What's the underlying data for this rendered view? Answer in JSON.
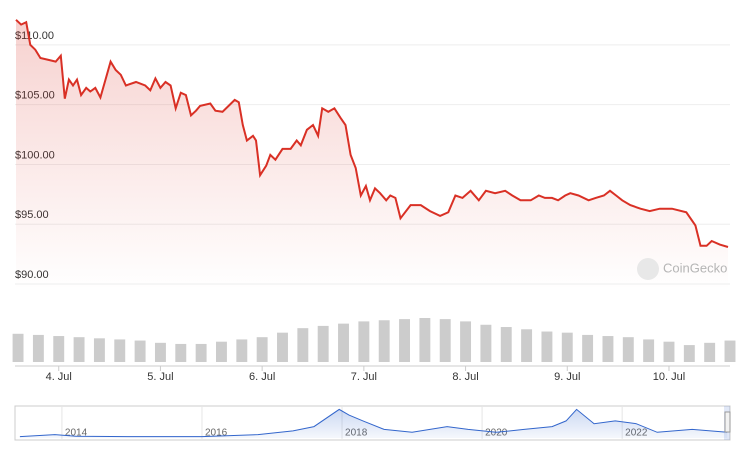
{
  "chart_data": [
    {
      "type": "line",
      "watermark": "CoinGecko",
      "x": [
        3.58,
        3.63,
        3.68,
        3.72,
        3.77,
        3.82,
        3.92,
        3.97,
        4.02,
        4.06,
        4.1,
        4.14,
        4.18,
        4.22,
        4.27,
        4.31,
        4.36,
        4.41,
        4.46,
        4.51,
        4.56,
        4.61,
        4.66,
        4.76,
        4.85,
        4.9,
        4.95,
        5.0,
        5.05,
        5.1,
        5.15,
        5.2,
        5.25,
        5.3,
        5.35,
        5.39,
        5.49,
        5.54,
        5.61,
        5.67,
        5.73,
        5.77,
        5.81,
        5.85,
        5.91,
        5.94,
        5.98,
        6.04,
        6.08,
        6.13,
        6.2,
        6.28,
        6.34,
        6.38,
        6.44,
        6.5,
        6.55,
        6.59,
        6.65,
        6.71,
        6.77,
        6.82,
        6.87,
        6.92,
        6.97,
        7.02,
        7.06,
        7.11,
        7.16,
        7.22,
        7.26,
        7.31,
        7.36,
        7.46,
        7.56,
        7.65,
        7.75,
        7.83,
        7.9,
        7.97,
        8.05,
        8.13,
        8.2,
        8.29,
        8.39,
        8.46,
        8.54,
        8.64,
        8.72,
        8.78,
        8.85,
        8.91,
        8.98,
        9.03,
        9.11,
        9.21,
        9.28,
        9.36,
        9.42,
        9.48,
        9.54,
        9.62,
        9.72,
        9.81,
        9.91,
        10.03,
        10.17,
        10.26,
        10.31,
        10.37,
        10.42,
        10.5,
        10.58
      ],
      "series": [
        {
          "color": "#d93025",
          "values": [
            112.1,
            111.7,
            111.9,
            110.0,
            109.6,
            108.9,
            108.7,
            108.6,
            109.1,
            105.5,
            107.1,
            106.6,
            107.1,
            105.8,
            106.4,
            106.1,
            106.4,
            105.6,
            107.1,
            108.6,
            107.9,
            107.5,
            106.6,
            106.9,
            106.6,
            106.2,
            107.2,
            106.4,
            106.9,
            106.6,
            104.7,
            106.0,
            105.8,
            104.1,
            104.5,
            104.9,
            105.1,
            104.5,
            104.4,
            104.9,
            105.4,
            105.2,
            103.3,
            102.0,
            102.4,
            102.0,
            99.1,
            99.9,
            100.8,
            100.4,
            101.3,
            101.3,
            102.0,
            101.6,
            102.9,
            103.3,
            102.4,
            104.7,
            104.4,
            104.7,
            103.9,
            103.3,
            100.8,
            99.7,
            97.4,
            98.2,
            97.0,
            98.0,
            97.6,
            97.0,
            97.4,
            97.2,
            95.5,
            96.6,
            96.6,
            96.1,
            95.7,
            96.0,
            97.4,
            97.2,
            97.8,
            97.0,
            97.8,
            97.6,
            97.8,
            97.4,
            97.0,
            97.0,
            97.4,
            97.2,
            97.2,
            97.0,
            97.4,
            97.6,
            97.4,
            97.0,
            97.2,
            97.4,
            97.8,
            97.4,
            97.0,
            96.6,
            96.3,
            96.1,
            96.3,
            96.3,
            96.0,
            94.9,
            93.2,
            93.2,
            93.6,
            93.3,
            93.1
          ]
        }
      ],
      "xlim": [
        3.57,
        10.6
      ],
      "ylim": [
        89.5,
        112.5
      ],
      "yticks": [
        {
          "value": 90,
          "label": "$90.00"
        },
        {
          "value": 95,
          "label": "$95.00"
        },
        {
          "value": 100,
          "label": "$100.00"
        },
        {
          "value": 105,
          "label": "$105.00"
        },
        {
          "value": 110,
          "label": "$110.00"
        }
      ],
      "grid": true,
      "area": true
    },
    {
      "type": "bar",
      "x": [
        3.6,
        3.8,
        4.0,
        4.2,
        4.4,
        4.6,
        4.8,
        5.0,
        5.2,
        5.4,
        5.6,
        5.8,
        6.0,
        6.2,
        6.4,
        6.6,
        6.8,
        7.0,
        7.2,
        7.4,
        7.6,
        7.8,
        8.0,
        8.2,
        8.4,
        8.6,
        8.8,
        9.0,
        9.2,
        9.4,
        9.6,
        9.8,
        10.0,
        10.2,
        10.4,
        10.6
      ],
      "values": [
        25,
        24,
        23,
        22,
        21,
        20,
        19,
        17,
        16,
        16,
        18,
        20,
        22,
        26,
        30,
        32,
        34,
        36,
        37,
        38,
        39,
        38,
        36,
        33,
        31,
        29,
        27,
        26,
        24,
        23,
        22,
        20,
        18,
        15,
        17,
        19
      ],
      "color": "#cccccc",
      "xlim": [
        3.57,
        10.6
      ],
      "xticks": [
        {
          "value": 4,
          "label": "4. Jul"
        },
        {
          "value": 5,
          "label": "5. Jul"
        },
        {
          "value": 6,
          "label": "6. Jul"
        },
        {
          "value": 7,
          "label": "7. Jul"
        },
        {
          "value": 8,
          "label": "8. Jul"
        },
        {
          "value": 9,
          "label": "9. Jul"
        },
        {
          "value": 10,
          "label": "10. Jul"
        }
      ]
    },
    {
      "type": "line",
      "x": [
        2013.4,
        2013.9,
        2014.2,
        2015,
        2016,
        2016.8,
        2017.3,
        2017.6,
        2017.96,
        2018.1,
        2018.3,
        2018.6,
        2019,
        2019.5,
        2019.8,
        2020.2,
        2020.6,
        2021,
        2021.2,
        2021.35,
        2021.6,
        2021.9,
        2022.2,
        2022.5,
        2023,
        2023.5
      ],
      "series": [
        {
          "color": "#3366cc",
          "values": [
            0.5,
            1.2,
            0.6,
            0.5,
            0.5,
            1.2,
            2.5,
            4,
            10,
            8,
            6,
            3,
            2,
            4,
            3,
            2,
            3,
            4,
            6,
            10,
            5,
            6,
            5,
            2,
            3,
            2
          ]
        }
      ],
      "xlim": [
        2013.33,
        2023.54
      ],
      "ylim": [
        0,
        10.5
      ],
      "xticks": [
        2014,
        2016,
        2018,
        2020,
        2022
      ],
      "area": true
    }
  ]
}
